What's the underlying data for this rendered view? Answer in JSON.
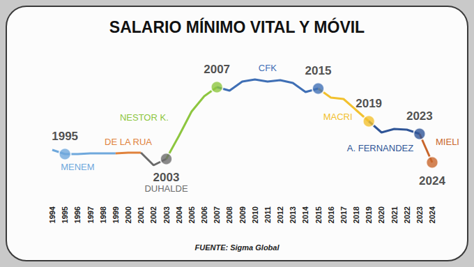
{
  "chart_data": {
    "type": "line",
    "title": "SALARIO MÍNIMO VITAL Y MÓVIL",
    "source": "FUENTE: Sigma Global",
    "categories": [
      "1994",
      "1995",
      "1996",
      "1997",
      "1998",
      "1999",
      "2000",
      "2001",
      "2002",
      "2003",
      "2004",
      "2005",
      "2006",
      "2007",
      "2008",
      "2009",
      "2010",
      "2011",
      "2012",
      "2013",
      "2014",
      "2015",
      "2016",
      "2017",
      "2018",
      "2019",
      "2020",
      "2021",
      "2022",
      "2023",
      "2024"
    ],
    "ylim": [
      0,
      230
    ],
    "tick_labels": "x",
    "grid": false,
    "marker": "circle",
    "series": [
      {
        "name": "MENEM",
        "color": "#6fa8dc",
        "values": [
          73,
          67,
          67,
          68,
          68,
          68,
          null,
          null,
          null,
          null,
          null,
          null,
          null,
          null,
          null,
          null,
          null,
          null,
          null,
          null,
          null,
          null,
          null,
          null,
          null,
          null,
          null,
          null,
          null,
          null,
          null
        ]
      },
      {
        "name": "DE LA RUA",
        "color": "#e0823c",
        "values": [
          null,
          null,
          null,
          null,
          null,
          68,
          69,
          69,
          null,
          null,
          null,
          null,
          null,
          null,
          null,
          null,
          null,
          null,
          null,
          null,
          null,
          null,
          null,
          null,
          null,
          null,
          null,
          null,
          null,
          null,
          null
        ]
      },
      {
        "name": "DUHALDE",
        "color": "#6b6b6b",
        "values": [
          null,
          null,
          null,
          null,
          null,
          null,
          null,
          69,
          51,
          60,
          null,
          null,
          null,
          null,
          null,
          null,
          null,
          null,
          null,
          null,
          null,
          null,
          null,
          null,
          null,
          null,
          null,
          null,
          null,
          null,
          null
        ]
      },
      {
        "name": "NESTOR K.",
        "color": "#8dc63f",
        "values": [
          null,
          null,
          null,
          null,
          null,
          null,
          null,
          null,
          null,
          60,
          93,
          128,
          150,
          163,
          null,
          null,
          null,
          null,
          null,
          null,
          null,
          null,
          null,
          null,
          null,
          null,
          null,
          null,
          null,
          null,
          null
        ]
      },
      {
        "name": "CFK",
        "color": "#3f6fb5",
        "values": [
          null,
          null,
          null,
          null,
          null,
          null,
          null,
          null,
          null,
          null,
          null,
          null,
          null,
          163,
          158,
          171,
          174,
          171,
          173,
          169,
          156,
          161,
          null,
          null,
          null,
          null,
          null,
          null,
          null,
          null,
          null
        ]
      },
      {
        "name": "MACRI",
        "color": "#f2c12e",
        "values": [
          null,
          null,
          null,
          null,
          null,
          null,
          null,
          null,
          null,
          null,
          null,
          null,
          null,
          null,
          null,
          null,
          null,
          null,
          null,
          null,
          null,
          161,
          148,
          146,
          130,
          114,
          null,
          null,
          null,
          null,
          null
        ]
      },
      {
        "name": "A. FERNANDEZ",
        "color": "#2f5597",
        "values": [
          null,
          null,
          null,
          null,
          null,
          null,
          null,
          null,
          null,
          null,
          null,
          null,
          null,
          null,
          null,
          null,
          null,
          null,
          null,
          null,
          null,
          null,
          null,
          null,
          null,
          114,
          98,
          103,
          102,
          96,
          null
        ]
      },
      {
        "name": "MIELI",
        "color": "#c8652a",
        "values": [
          null,
          null,
          null,
          null,
          null,
          null,
          null,
          null,
          null,
          null,
          null,
          null,
          null,
          null,
          null,
          null,
          null,
          null,
          null,
          null,
          null,
          null,
          null,
          null,
          null,
          null,
          null,
          null,
          null,
          96,
          55
        ]
      }
    ],
    "annotations": [
      {
        "x": "1995",
        "label": "1995",
        "color": "#6fa8dc"
      },
      {
        "x": "2003",
        "label": "2003",
        "color": "#6b6b6b"
      },
      {
        "x": "2007",
        "label": "2007",
        "color": "#8dc63f"
      },
      {
        "x": "2015",
        "label": "2015",
        "color": "#3f6fb5"
      },
      {
        "x": "2019",
        "label": "2019",
        "color": "#f2c12e"
      },
      {
        "x": "2023",
        "label": "2023",
        "color": "#2f5597"
      },
      {
        "x": "2024",
        "label": "2024",
        "color": "#c8652a"
      }
    ]
  }
}
